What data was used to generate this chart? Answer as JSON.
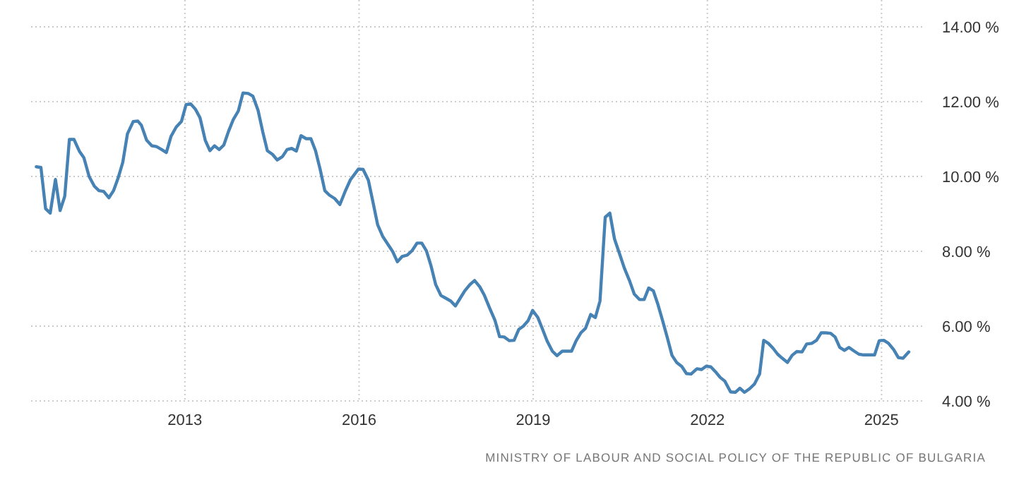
{
  "chart_data": {
    "type": "line",
    "x": [
      2010.44,
      2010.52,
      2010.6,
      2010.68,
      2010.77,
      2010.85,
      2010.93,
      2011.01,
      2011.09,
      2011.18,
      2011.26,
      2011.35,
      2011.44,
      2011.52,
      2011.6,
      2011.69,
      2011.77,
      2011.85,
      2011.93,
      2012.01,
      2012.11,
      2012.19,
      2012.25,
      2012.34,
      2012.43,
      2012.51,
      2012.6,
      2012.68,
      2012.76,
      2012.85,
      2012.94,
      2013.02,
      2013.1,
      2013.18,
      2013.26,
      2013.35,
      2013.43,
      2013.51,
      2013.59,
      2013.67,
      2013.75,
      2013.83,
      2013.92,
      2014.0,
      2014.09,
      2014.17,
      2014.26,
      2014.34,
      2014.42,
      2014.51,
      2014.59,
      2014.68,
      2014.76,
      2014.84,
      2014.92,
      2015.0,
      2015.09,
      2015.17,
      2015.25,
      2015.33,
      2015.41,
      2015.49,
      2015.58,
      2015.67,
      2015.76,
      2015.85,
      2015.99,
      2016.07,
      2016.16,
      2016.24,
      2016.32,
      2016.41,
      2016.5,
      2016.58,
      2016.66,
      2016.74,
      2016.83,
      2016.91,
      2017.0,
      2017.08,
      2017.16,
      2017.24,
      2017.32,
      2017.41,
      2017.5,
      2017.58,
      2017.66,
      2017.74,
      2017.82,
      2017.91,
      2017.99,
      2018.08,
      2018.16,
      2018.25,
      2018.34,
      2018.42,
      2018.5,
      2018.59,
      2018.67,
      2018.75,
      2018.83,
      2018.91,
      2018.99,
      2019.08,
      2019.16,
      2019.24,
      2019.33,
      2019.41,
      2019.5,
      2019.58,
      2019.66,
      2019.74,
      2019.82,
      2019.9,
      2019.99,
      2020.07,
      2020.15,
      2020.24,
      2020.32,
      2020.4,
      2020.49,
      2020.57,
      2020.66,
      2020.74,
      2020.83,
      2020.91,
      2020.99,
      2021.07,
      2021.15,
      2021.23,
      2021.31,
      2021.39,
      2021.47,
      2021.56,
      2021.64,
      2021.72,
      2021.82,
      2021.9,
      2021.98,
      2022.06,
      2022.14,
      2022.22,
      2022.3,
      2022.4,
      2022.48,
      2022.56,
      2022.64,
      2022.73,
      2022.81,
      2022.9,
      2022.97,
      2023.05,
      2023.13,
      2023.21,
      2023.29,
      2023.38,
      2023.46,
      2023.54,
      2023.63,
      2023.71,
      2023.8,
      2023.88,
      2023.96,
      2024.04,
      2024.12,
      2024.2,
      2024.28,
      2024.36,
      2024.44,
      2024.53,
      2024.61,
      2024.69,
      2024.77,
      2024.88,
      2024.96,
      2025.04,
      2025.12,
      2025.21,
      2025.29,
      2025.37,
      2025.47
    ],
    "series": [
      {
        "color": "#4682b4",
        "values": [
          10.26,
          10.24,
          9.14,
          9.02,
          9.92,
          9.09,
          9.47,
          10.99,
          10.99,
          10.68,
          10.5,
          10.0,
          9.74,
          9.62,
          9.6,
          9.43,
          9.62,
          9.96,
          10.38,
          11.14,
          11.47,
          11.48,
          11.37,
          10.97,
          10.82,
          10.8,
          10.72,
          10.64,
          11.07,
          11.32,
          11.47,
          11.92,
          11.94,
          11.8,
          11.57,
          10.97,
          10.69,
          10.82,
          10.72,
          10.84,
          11.2,
          11.51,
          11.75,
          12.23,
          12.22,
          12.15,
          11.77,
          11.2,
          10.69,
          10.59,
          10.44,
          10.53,
          10.72,
          10.75,
          10.68,
          11.09,
          11.01,
          11.01,
          10.69,
          10.19,
          9.62,
          9.5,
          9.41,
          9.25,
          9.6,
          9.91,
          10.2,
          10.19,
          9.9,
          9.31,
          8.71,
          8.39,
          8.18,
          7.99,
          7.72,
          7.86,
          7.9,
          8.01,
          8.22,
          8.22,
          8.01,
          7.61,
          7.11,
          6.82,
          6.74,
          6.67,
          6.54,
          6.74,
          6.94,
          7.11,
          7.22,
          7.05,
          6.82,
          6.48,
          6.16,
          5.72,
          5.71,
          5.61,
          5.62,
          5.91,
          6.0,
          6.14,
          6.42,
          6.23,
          5.92,
          5.6,
          5.33,
          5.21,
          5.33,
          5.33,
          5.33,
          5.61,
          5.82,
          5.94,
          6.31,
          6.23,
          6.67,
          8.91,
          9.02,
          8.33,
          7.92,
          7.55,
          7.21,
          6.86,
          6.71,
          6.71,
          7.02,
          6.94,
          6.57,
          6.14,
          5.69,
          5.22,
          5.03,
          4.92,
          4.73,
          4.72,
          4.86,
          4.84,
          4.93,
          4.91,
          4.78,
          4.63,
          4.53,
          4.24,
          4.23,
          4.34,
          4.23,
          4.33,
          4.45,
          4.72,
          5.62,
          5.54,
          5.41,
          5.25,
          5.14,
          5.03,
          5.22,
          5.32,
          5.31,
          5.52,
          5.54,
          5.62,
          5.82,
          5.82,
          5.81,
          5.71,
          5.43,
          5.35,
          5.43,
          5.33,
          5.25,
          5.23,
          5.23,
          5.23,
          5.61,
          5.62,
          5.54,
          5.37,
          5.16,
          5.14,
          5.31
        ]
      }
    ],
    "xlim": [
      2010.35,
      2025.75
    ],
    "xticks": [
      2013,
      2016,
      2019,
      2022,
      2025
    ],
    "ylim": [
      4,
      14
    ],
    "yticks": [
      {
        "value": 4,
        "label": "4.00 %"
      },
      {
        "value": 6,
        "label": "6.00 %"
      },
      {
        "value": 8,
        "label": "8.00 %"
      },
      {
        "value": 10,
        "label": "10.00 %"
      },
      {
        "value": 12,
        "label": "12.00 %"
      },
      {
        "value": 14,
        "label": "14.00 %"
      }
    ],
    "grid": true,
    "line_style": "solid",
    "marker": "none",
    "annotations": [
      "MINISTRY OF LABOUR AND SOCIAL POLICY OF THE REPUBLIC OF BULGARIA"
    ]
  }
}
